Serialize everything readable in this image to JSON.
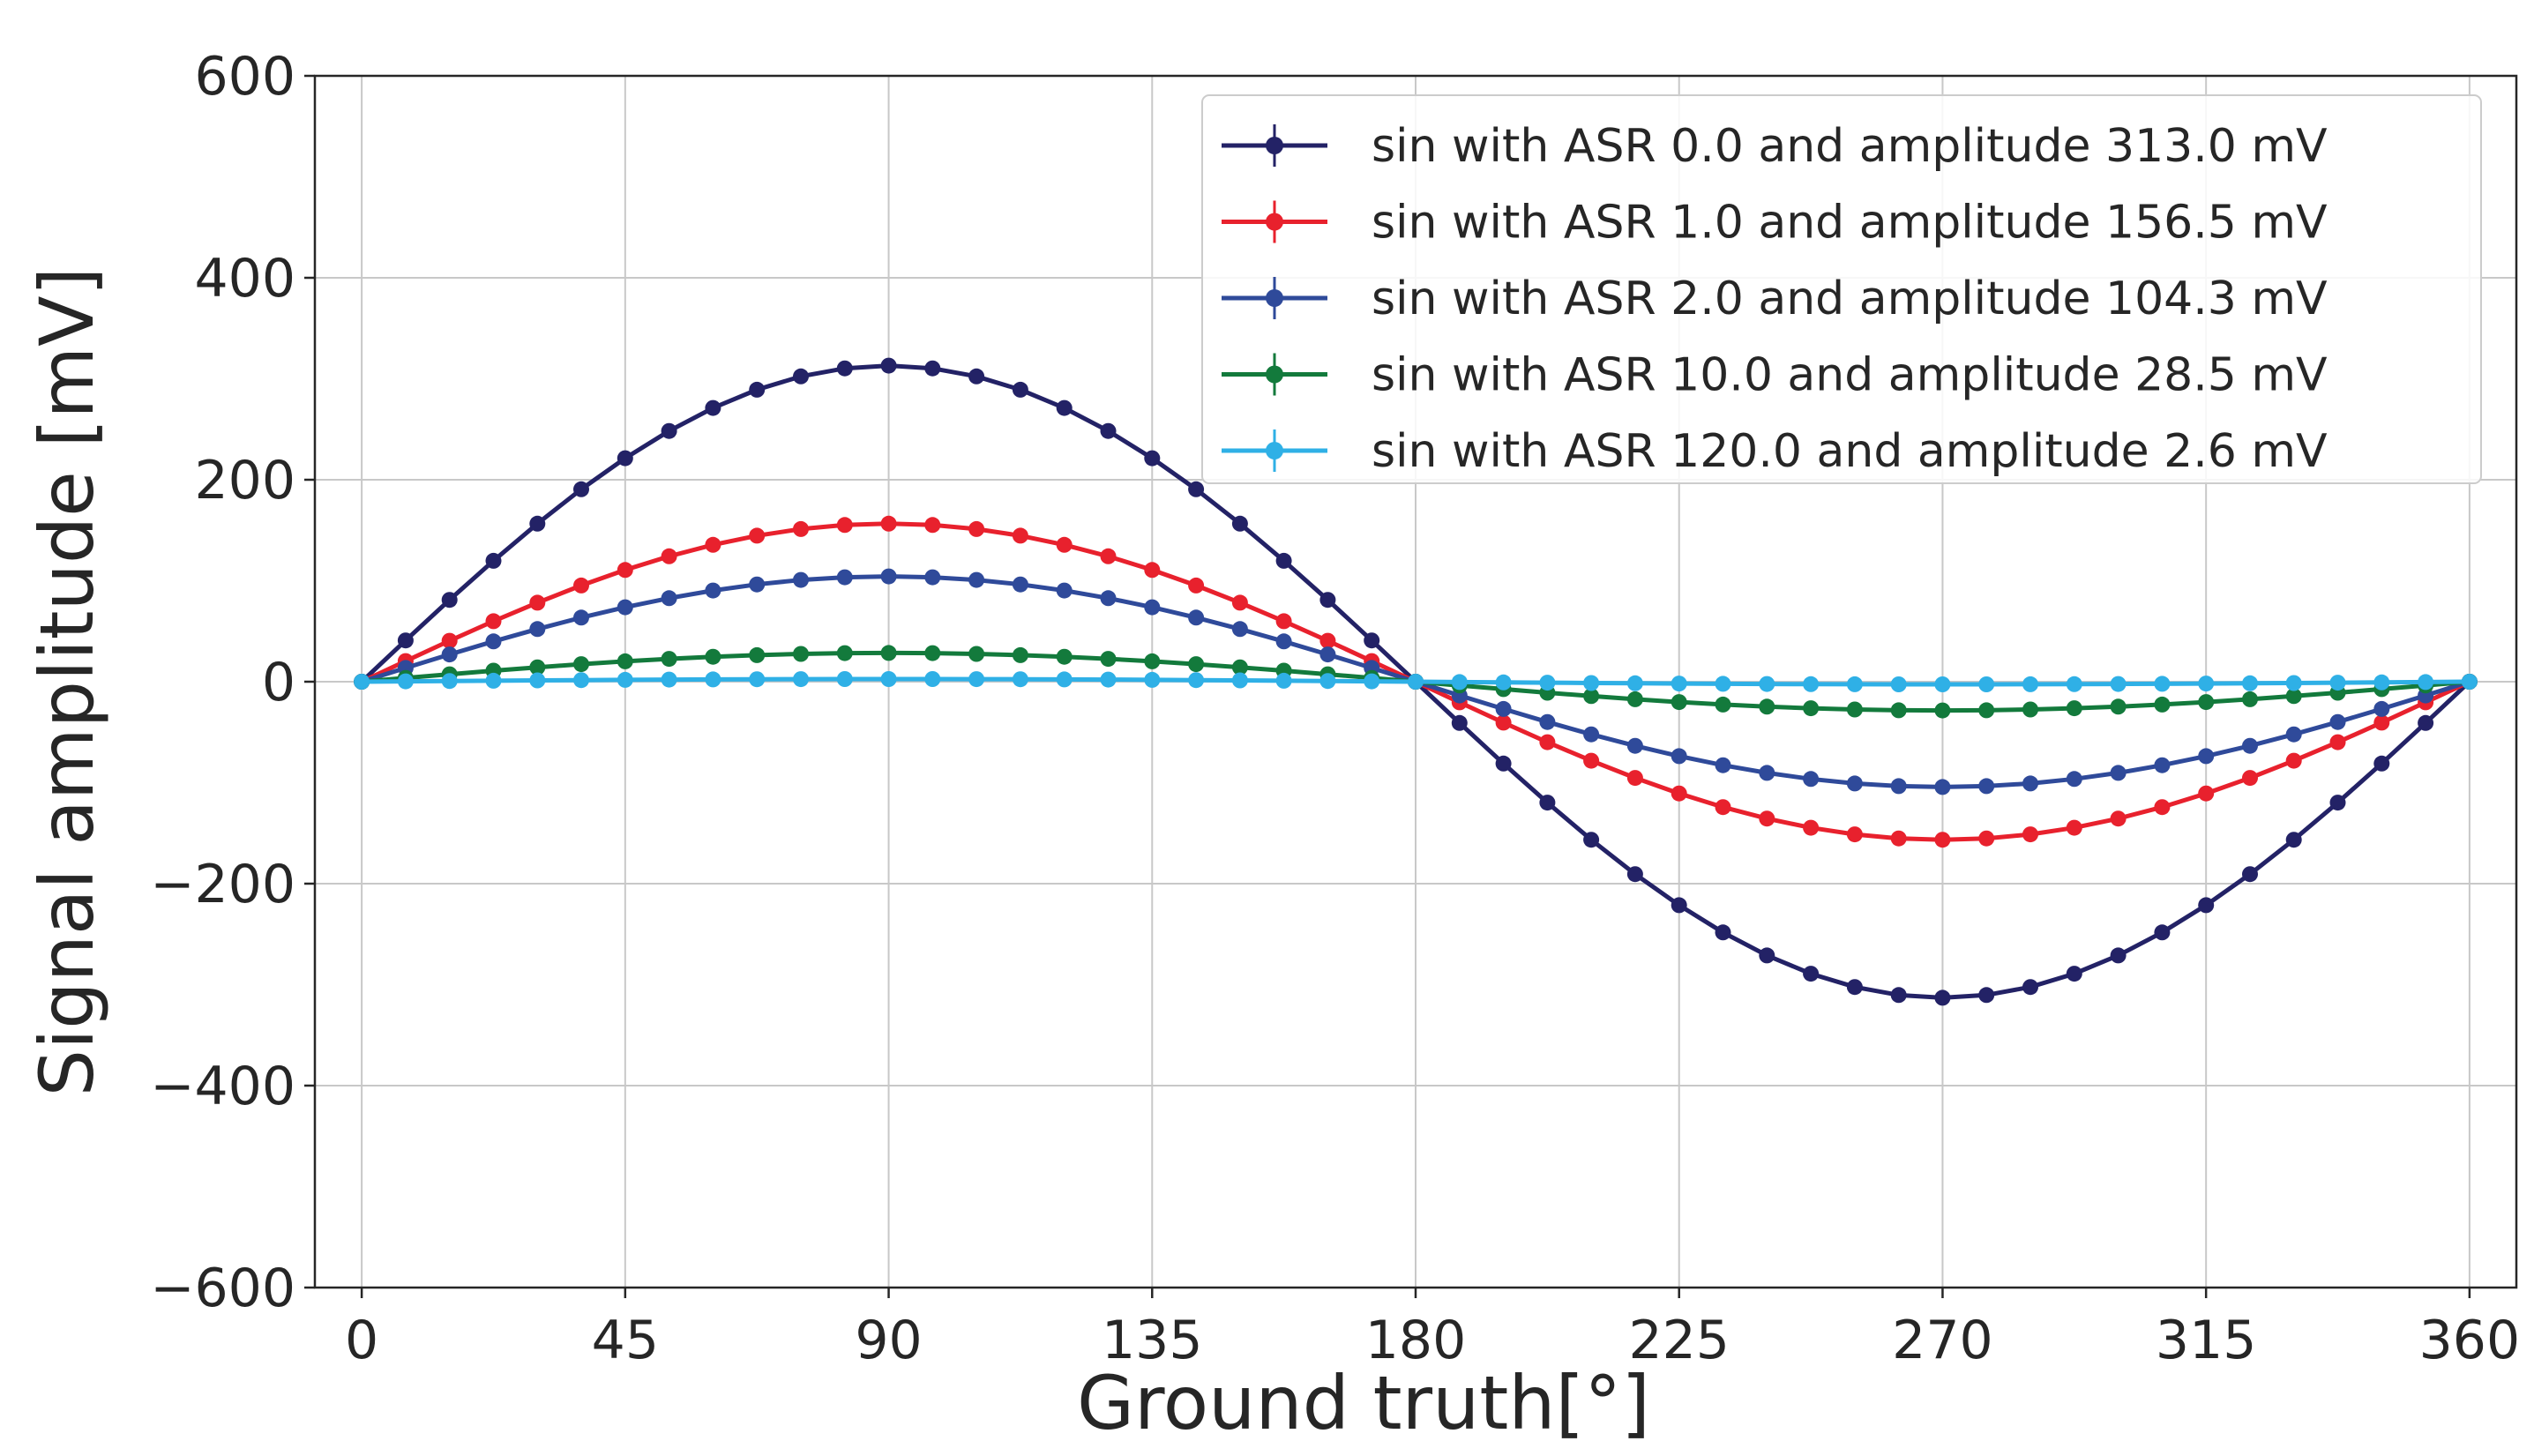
{
  "chart_data": {
    "type": "line",
    "xlabel": "Ground truth[°]",
    "ylabel": "Signal amplitude [mV]",
    "xlim": [
      -8,
      368
    ],
    "ylim": [
      -600,
      600
    ],
    "x_ticks": [
      0,
      45,
      90,
      135,
      180,
      225,
      270,
      315,
      360
    ],
    "y_ticks": [
      -600,
      -400,
      -200,
      0,
      200,
      400,
      600
    ],
    "grid": true,
    "legend_position": "top-right",
    "x_step_degrees": 7.5,
    "series": [
      {
        "name": "sin with ASR 0.0 and amplitude 313.0 mV",
        "amplitude": 313.0,
        "color": "#232266"
      },
      {
        "name": "sin with ASR 1.0 and amplitude 156.5 mV",
        "amplitude": 156.5,
        "color": "#e8212d"
      },
      {
        "name": "sin with ASR 2.0 and amplitude 104.3 mV",
        "amplitude": 104.3,
        "color": "#2f4a9a"
      },
      {
        "name": "sin with ASR 10.0 and amplitude 28.5 mV",
        "amplitude": 28.5,
        "color": "#137a3c"
      },
      {
        "name": "sin with ASR 120.0 and amplitude 2.6 mV",
        "amplitude": 2.6,
        "color": "#2fb0e6"
      }
    ]
  }
}
